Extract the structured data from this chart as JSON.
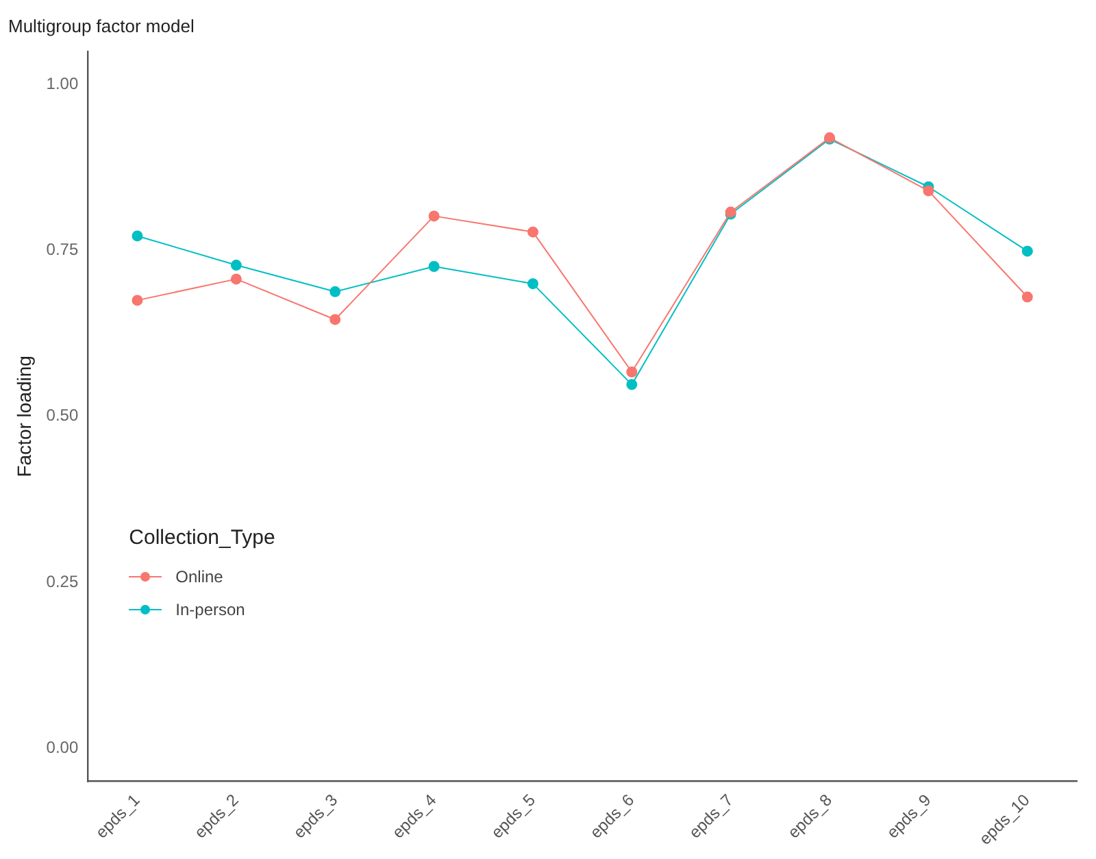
{
  "chart_data": {
    "type": "line",
    "title": "Multigroup factor model",
    "ylabel": "Factor loading",
    "legend_title": "Collection_Type",
    "categories": [
      "epds_1",
      "epds_2",
      "epds_3",
      "epds_4",
      "epds_5",
      "epds_6",
      "epds_7",
      "epds_8",
      "epds_9",
      "epds_10"
    ],
    "series": [
      {
        "name": "Online",
        "color": "#f8766d",
        "values": [
          0.675,
          0.707,
          0.646,
          0.802,
          0.778,
          0.567,
          0.808,
          0.92,
          0.84,
          0.68
        ]
      },
      {
        "name": "In-person",
        "color": "#00bfc4",
        "values": [
          0.772,
          0.728,
          0.688,
          0.726,
          0.7,
          0.548,
          0.805,
          0.918,
          0.846,
          0.749
        ]
      }
    ],
    "ylim": [
      -0.05,
      1.05
    ],
    "yticks": [
      {
        "value": 0,
        "label": "0.00"
      },
      {
        "value": 0.25,
        "label": "0.25"
      },
      {
        "value": 0.5,
        "label": "0.50"
      },
      {
        "value": 0.75,
        "label": "0.75"
      },
      {
        "value": 1,
        "label": "1.00"
      }
    ],
    "grid": false,
    "legend": "bottom left",
    "marker": "circle",
    "line_style": "solid"
  }
}
